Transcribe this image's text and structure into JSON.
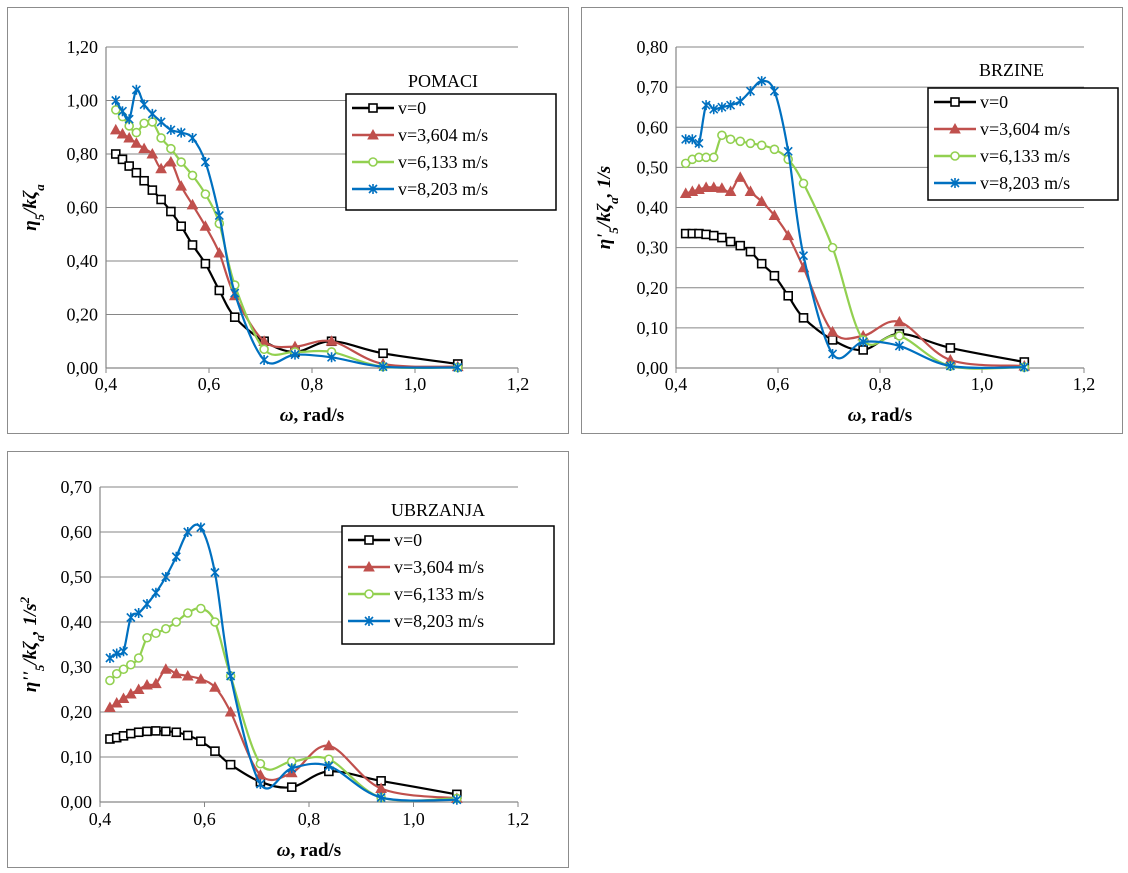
{
  "colors": {
    "v0": "#000000",
    "v3604": "#c0504d",
    "v6133": "#92d050",
    "v8203": "#0070c0",
    "grid": "#868686"
  },
  "chart_data": [
    {
      "type": "line",
      "title": "POMACI",
      "xlabel_main": "ω",
      "xlabel_rest": ", rad/s",
      "ylabel_html": "η<tspan baseline-shift='sub' font-size='13'>5</tspan>/<tspan>kζ</tspan><tspan baseline-shift='sub' font-size='13'>a</tspan>",
      "xlim": [
        0.4,
        1.2
      ],
      "ylim": [
        0,
        1.2
      ],
      "xticks": [
        "0,4",
        "0,6",
        "0,8",
        "1,0",
        "1,2"
      ],
      "xtick_values": [
        0.4,
        0.6,
        0.8,
        1.0,
        1.2
      ],
      "yticks": [
        "0,00",
        "0,20",
        "0,40",
        "0,60",
        "0,80",
        "1,00",
        "1,20"
      ],
      "ytick_values": [
        0,
        0.2,
        0.4,
        0.6,
        0.8,
        1.0,
        1.2
      ],
      "legend_position": "top-right",
      "grid": true,
      "series": [
        {
          "name": "v=0",
          "marker": "square",
          "color_key": "v0",
          "x": [
            0.419,
            0.432,
            0.445,
            0.459,
            0.474,
            0.49,
            0.507,
            0.526,
            0.546,
            0.568,
            0.593,
            0.62,
            0.65,
            0.707,
            0.767,
            0.838,
            0.938,
            1.083
          ],
          "y": [
            0.8,
            0.78,
            0.755,
            0.73,
            0.7,
            0.665,
            0.63,
            0.585,
            0.53,
            0.46,
            0.39,
            0.29,
            0.19,
            0.1,
            0.06,
            0.1,
            0.055,
            0.015
          ]
        },
        {
          "name": "v=3,604 m/s",
          "marker": "triangle",
          "color_key": "v3604",
          "x": [
            0.419,
            0.432,
            0.445,
            0.459,
            0.474,
            0.49,
            0.507,
            0.526,
            0.546,
            0.568,
            0.593,
            0.62,
            0.65,
            0.707,
            0.767,
            0.838,
            0.938,
            1.083
          ],
          "y": [
            0.89,
            0.875,
            0.86,
            0.84,
            0.82,
            0.8,
            0.745,
            0.77,
            0.68,
            0.61,
            0.53,
            0.43,
            0.27,
            0.1,
            0.08,
            0.1,
            0.015,
            0.005
          ]
        },
        {
          "name": "v=6,133 m/s",
          "marker": "circle",
          "color_key": "v6133",
          "x": [
            0.419,
            0.432,
            0.445,
            0.459,
            0.474,
            0.49,
            0.507,
            0.526,
            0.546,
            0.568,
            0.593,
            0.62,
            0.65,
            0.707,
            0.767,
            0.838,
            0.938,
            1.083
          ],
          "y": [
            0.965,
            0.94,
            0.905,
            0.88,
            0.915,
            0.92,
            0.86,
            0.82,
            0.77,
            0.72,
            0.65,
            0.54,
            0.31,
            0.07,
            0.06,
            0.06,
            0.005,
            0.002
          ]
        },
        {
          "name": "v=8,203 m/s",
          "marker": "star",
          "color_key": "v8203",
          "x": [
            0.419,
            0.432,
            0.445,
            0.459,
            0.474,
            0.49,
            0.507,
            0.526,
            0.546,
            0.568,
            0.593,
            0.62,
            0.65,
            0.707,
            0.767,
            0.838,
            0.938,
            1.083
          ],
          "y": [
            1.0,
            0.96,
            0.93,
            1.04,
            0.985,
            0.95,
            0.92,
            0.89,
            0.88,
            0.86,
            0.77,
            0.57,
            0.28,
            0.03,
            0.05,
            0.04,
            0.005,
            0.002
          ]
        }
      ]
    },
    {
      "type": "line",
      "title": "BRZINE",
      "xlabel_main": "ω",
      "xlabel_rest": ", rad/s",
      "ylabel_html": "η'<tspan baseline-shift='sub' font-size='13'>5</tspan>/<tspan>kζ</tspan><tspan baseline-shift='sub' font-size='13'>a</tspan>, 1/s",
      "xlim": [
        0.4,
        1.2
      ],
      "ylim": [
        0,
        0.8
      ],
      "xticks": [
        "0,4",
        "0,6",
        "0,8",
        "1,0",
        "1,2"
      ],
      "xtick_values": [
        0.4,
        0.6,
        0.8,
        1.0,
        1.2
      ],
      "yticks": [
        "0,00",
        "0,10",
        "0,20",
        "0,30",
        "0,40",
        "0,50",
        "0,60",
        "0,70",
        "0,80"
      ],
      "ytick_values": [
        0,
        0.1,
        0.2,
        0.3,
        0.4,
        0.5,
        0.6,
        0.7,
        0.8
      ],
      "legend_position": "top-right",
      "grid": true,
      "series": [
        {
          "name": "v=0",
          "marker": "square",
          "color_key": "v0",
          "x": [
            0.419,
            0.432,
            0.445,
            0.459,
            0.474,
            0.49,
            0.507,
            0.526,
            0.546,
            0.568,
            0.593,
            0.62,
            0.65,
            0.707,
            0.767,
            0.838,
            0.938,
            1.083
          ],
          "y": [
            0.335,
            0.335,
            0.335,
            0.333,
            0.33,
            0.325,
            0.315,
            0.305,
            0.29,
            0.26,
            0.23,
            0.18,
            0.125,
            0.07,
            0.045,
            0.085,
            0.05,
            0.015
          ]
        },
        {
          "name": "v=3,604 m/s",
          "marker": "triangle",
          "color_key": "v3604",
          "x": [
            0.419,
            0.432,
            0.445,
            0.459,
            0.474,
            0.49,
            0.507,
            0.526,
            0.546,
            0.568,
            0.593,
            0.62,
            0.65,
            0.707,
            0.767,
            0.838,
            0.938,
            1.083
          ],
          "y": [
            0.435,
            0.44,
            0.445,
            0.45,
            0.45,
            0.448,
            0.44,
            0.475,
            0.44,
            0.415,
            0.38,
            0.33,
            0.25,
            0.09,
            0.08,
            0.115,
            0.02,
            0.005
          ]
        },
        {
          "name": "v=6,133 m/s",
          "marker": "circle",
          "color_key": "v6133",
          "x": [
            0.419,
            0.432,
            0.445,
            0.459,
            0.474,
            0.49,
            0.507,
            0.526,
            0.546,
            0.568,
            0.593,
            0.62,
            0.65,
            0.707,
            0.767,
            0.838,
            0.938,
            1.083
          ],
          "y": [
            0.51,
            0.52,
            0.525,
            0.525,
            0.525,
            0.58,
            0.57,
            0.565,
            0.56,
            0.555,
            0.545,
            0.52,
            0.46,
            0.3,
            0.07,
            0.08,
            0.005,
            0.002
          ]
        },
        {
          "name": "v=8,203 m/s",
          "marker": "star",
          "color_key": "v8203",
          "x": [
            0.419,
            0.432,
            0.445,
            0.459,
            0.474,
            0.49,
            0.507,
            0.526,
            0.546,
            0.568,
            0.593,
            0.62,
            0.65,
            0.707,
            0.767,
            0.838,
            0.938,
            1.083
          ],
          "y": [
            0.57,
            0.57,
            0.56,
            0.655,
            0.645,
            0.65,
            0.655,
            0.665,
            0.69,
            0.715,
            0.69,
            0.54,
            0.28,
            0.035,
            0.065,
            0.055,
            0.005,
            0.002
          ]
        }
      ]
    },
    {
      "type": "line",
      "title": "UBRZANJA",
      "xlabel_main": "ω",
      "xlabel_rest": ", rad/s",
      "ylabel_html": "η''<tspan baseline-shift='sub' font-size='13'>5</tspan>/<tspan>kζ</tspan><tspan baseline-shift='sub' font-size='13'>a</tspan>, 1/s<tspan baseline-shift='super' font-size='13'>2</tspan>",
      "xlim": [
        0.4,
        1.2
      ],
      "ylim": [
        0,
        0.7
      ],
      "xticks": [
        "0,4",
        "0,6",
        "0,8",
        "1,0",
        "1,2"
      ],
      "xtick_values": [
        0.4,
        0.6,
        0.8,
        1.0,
        1.2
      ],
      "yticks": [
        "0,00",
        "0,10",
        "0,20",
        "0,30",
        "0,40",
        "0,50",
        "0,60",
        "0,70"
      ],
      "ytick_values": [
        0,
        0.1,
        0.2,
        0.3,
        0.4,
        0.5,
        0.6,
        0.7
      ],
      "legend_position": "top-right",
      "grid": true,
      "series": [
        {
          "name": "v=0",
          "marker": "square",
          "color_key": "v0",
          "x": [
            0.419,
            0.432,
            0.445,
            0.459,
            0.474,
            0.49,
            0.507,
            0.526,
            0.546,
            0.568,
            0.593,
            0.62,
            0.65,
            0.707,
            0.767,
            0.838,
            0.938,
            1.083
          ],
          "y": [
            0.14,
            0.143,
            0.147,
            0.152,
            0.155,
            0.157,
            0.158,
            0.157,
            0.155,
            0.148,
            0.135,
            0.113,
            0.083,
            0.045,
            0.033,
            0.068,
            0.047,
            0.017
          ]
        },
        {
          "name": "v=3,604 m/s",
          "marker": "triangle",
          "color_key": "v3604",
          "x": [
            0.419,
            0.432,
            0.445,
            0.459,
            0.474,
            0.49,
            0.507,
            0.526,
            0.546,
            0.568,
            0.593,
            0.62,
            0.65,
            0.707,
            0.767,
            0.838,
            0.938,
            1.083
          ],
          "y": [
            0.21,
            0.22,
            0.23,
            0.24,
            0.25,
            0.26,
            0.263,
            0.295,
            0.285,
            0.28,
            0.273,
            0.255,
            0.2,
            0.06,
            0.065,
            0.125,
            0.03,
            0.008
          ]
        },
        {
          "name": "v=6,133 m/s",
          "marker": "circle",
          "color_key": "v6133",
          "x": [
            0.419,
            0.432,
            0.445,
            0.459,
            0.474,
            0.49,
            0.507,
            0.526,
            0.546,
            0.568,
            0.593,
            0.62,
            0.65,
            0.707,
            0.767,
            0.838,
            0.938,
            1.083
          ],
          "y": [
            0.27,
            0.285,
            0.295,
            0.305,
            0.32,
            0.365,
            0.375,
            0.385,
            0.4,
            0.42,
            0.43,
            0.4,
            0.28,
            0.085,
            0.09,
            0.095,
            0.01,
            0.008
          ]
        },
        {
          "name": "v=8,203 m/s",
          "marker": "star",
          "color_key": "v8203",
          "x": [
            0.419,
            0.432,
            0.445,
            0.459,
            0.474,
            0.49,
            0.507,
            0.526,
            0.546,
            0.568,
            0.593,
            0.62,
            0.65,
            0.707,
            0.767,
            0.838,
            0.938,
            1.083
          ],
          "y": [
            0.32,
            0.33,
            0.335,
            0.41,
            0.42,
            0.44,
            0.465,
            0.5,
            0.545,
            0.6,
            0.61,
            0.51,
            0.28,
            0.04,
            0.075,
            0.08,
            0.01,
            0.005
          ]
        }
      ]
    }
  ]
}
